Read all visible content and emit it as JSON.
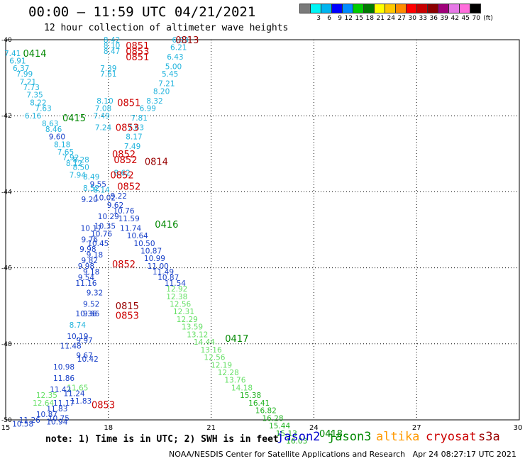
{
  "header": {
    "title": "00:00 – 11:59 UTC 04/21/2021",
    "subtitle": "12 hour collection of altimeter wave heights"
  },
  "legend": {
    "colors": [
      "#7a7a7a",
      "#00f5f5",
      "#00b4f0",
      "#0000ff",
      "#008cff",
      "#00cc00",
      "#007a00",
      "#ffff00",
      "#ffc800",
      "#ff8c00",
      "#ff0000",
      "#c80000",
      "#8c0000",
      "#a0007a",
      "#e678e6",
      "#ff6edc",
      "#000000"
    ],
    "labels": [
      "",
      "3",
      "6",
      "9",
      "12",
      "15",
      "18",
      "21",
      "24",
      "27",
      "30",
      "33",
      "36",
      "39",
      "42",
      "45",
      "70",
      "(ft)"
    ]
  },
  "footer": {
    "note": "note: 1) Time is in UTC; 2) SWH is in feet",
    "credit": "NOAA/NESDIS Center for Satellite Applications and Research   Apr 24 08:27:17 UTC 2021"
  },
  "satellites": [
    {
      "name": "jason2",
      "color": "#0000cc"
    },
    {
      "name": "jason3",
      "color": "#008800"
    },
    {
      "name": "altika",
      "color": "#ff9900"
    },
    {
      "name": "cryosat",
      "color": "#cc0000"
    },
    {
      "name": "s3a",
      "color": "#990000"
    }
  ],
  "chart_data": {
    "type": "scatter",
    "x_ticks": [
      "15",
      "18",
      "21",
      "24",
      "27",
      "30"
    ],
    "y_ticks": [
      "-40",
      "-42",
      "-44",
      "-46",
      "-48",
      "-50"
    ],
    "xlim": [
      15,
      30
    ],
    "ylim": [
      -50,
      -40
    ],
    "grid": true,
    "points": [
      {
        "x": 15.2,
        "y": -40.35,
        "t": "7.41",
        "c": "#22b4dd"
      },
      {
        "x": 15.35,
        "y": -40.55,
        "t": "6.91",
        "c": "#22b4dd"
      },
      {
        "x": 15.45,
        "y": -40.75,
        "t": "6.37",
        "c": "#22b4dd"
      },
      {
        "x": 15.55,
        "y": -40.9,
        "t": "7.99",
        "c": "#22b4dd"
      },
      {
        "x": 15.65,
        "y": -41.1,
        "t": "7.21",
        "c": "#22b4dd"
      },
      {
        "x": 15.75,
        "y": -41.25,
        "t": "7.73",
        "c": "#22b4dd"
      },
      {
        "x": 15.85,
        "y": -41.45,
        "t": "7.35",
        "c": "#22b4dd"
      },
      {
        "x": 15.95,
        "y": -41.65,
        "t": "8.22",
        "c": "#22b4dd"
      },
      {
        "x": 16.1,
        "y": -41.8,
        "t": "7.63",
        "c": "#22b4dd"
      },
      {
        "x": 15.8,
        "y": -42.0,
        "t": "6.16",
        "c": "#22b4dd"
      },
      {
        "x": 16.3,
        "y": -42.2,
        "t": "8.63",
        "c": "#22b4dd"
      },
      {
        "x": 16.4,
        "y": -42.35,
        "t": "8.46",
        "c": "#22b4dd"
      },
      {
        "x": 16.5,
        "y": -42.55,
        "t": "9.60",
        "c": "#1840c8"
      },
      {
        "x": 16.65,
        "y": -42.75,
        "t": "8.18",
        "c": "#22b4dd"
      },
      {
        "x": 16.75,
        "y": -42.95,
        "t": "7.65",
        "c": "#22b4dd"
      },
      {
        "x": 16.9,
        "y": -43.1,
        "t": "7.92",
        "c": "#22b4dd"
      },
      {
        "x": 17.0,
        "y": -43.25,
        "t": "8.12",
        "c": "#22b4dd"
      },
      {
        "x": 17.1,
        "y": -43.55,
        "t": "7.94",
        "c": "#22b4dd"
      },
      {
        "x": 17.45,
        "y": -44.2,
        "t": "9.20",
        "c": "#1840c8"
      },
      {
        "x": 17.5,
        "y": -43.9,
        "t": "8.52",
        "c": "#22b4dd"
      },
      {
        "x": 17.2,
        "y": -43.15,
        "t": "8.28",
        "c": "#22b4dd"
      },
      {
        "x": 17.2,
        "y": -43.35,
        "t": "8.50",
        "c": "#22b4dd"
      },
      {
        "x": 17.5,
        "y": -43.6,
        "t": "8.49",
        "c": "#22b4dd"
      },
      {
        "x": 17.7,
        "y": -43.8,
        "t": "9.55",
        "c": "#1840c8"
      },
      {
        "x": 17.8,
        "y": -43.95,
        "t": "8.14",
        "c": "#22b4dd"
      },
      {
        "x": 18.1,
        "y": -40.0,
        "t": "8.42",
        "c": "#22b4dd"
      },
      {
        "x": 18.1,
        "y": -40.15,
        "t": "8.10",
        "c": "#22b4dd"
      },
      {
        "x": 18.1,
        "y": -40.3,
        "t": "8.47",
        "c": "#22b4dd"
      },
      {
        "x": 18.0,
        "y": -40.75,
        "t": "7.39",
        "c": "#22b4dd"
      },
      {
        "x": 18.0,
        "y": -40.9,
        "t": "7.61",
        "c": "#22b4dd"
      },
      {
        "x": 17.9,
        "y": -41.6,
        "t": "8.10",
        "c": "#22b4dd"
      },
      {
        "x": 17.85,
        "y": -41.8,
        "t": "7.08",
        "c": "#22b4dd"
      },
      {
        "x": 17.8,
        "y": -42.0,
        "t": "7.49",
        "c": "#22b4dd"
      },
      {
        "x": 17.85,
        "y": -42.3,
        "t": "7.24",
        "c": "#22b4dd"
      },
      {
        "x": 20.1,
        "y": -40.0,
        "t": "6.83",
        "c": "#22b4dd"
      },
      {
        "x": 20.05,
        "y": -40.2,
        "t": "6.21",
        "c": "#22b4dd"
      },
      {
        "x": 19.95,
        "y": -40.45,
        "t": "6.43",
        "c": "#22b4dd"
      },
      {
        "x": 19.9,
        "y": -40.7,
        "t": "5.00",
        "c": "#22b4dd"
      },
      {
        "x": 19.8,
        "y": -40.9,
        "t": "5.45",
        "c": "#22b4dd"
      },
      {
        "x": 19.7,
        "y": -41.15,
        "t": "7.21",
        "c": "#22b4dd"
      },
      {
        "x": 19.55,
        "y": -41.35,
        "t": "8.20",
        "c": "#22b4dd"
      },
      {
        "x": 19.35,
        "y": -41.6,
        "t": "8.32",
        "c": "#22b4dd"
      },
      {
        "x": 19.15,
        "y": -41.8,
        "t": "6.99",
        "c": "#22b4dd"
      },
      {
        "x": 18.9,
        "y": -42.05,
        "t": "7.81",
        "c": "#22b4dd"
      },
      {
        "x": 18.8,
        "y": -42.3,
        "t": "7.63",
        "c": "#22b4dd"
      },
      {
        "x": 18.75,
        "y": -42.55,
        "t": "8.17",
        "c": "#22b4dd"
      },
      {
        "x": 18.7,
        "y": -42.8,
        "t": "7.49",
        "c": "#22b4dd"
      },
      {
        "x": 18.4,
        "y": -43.5,
        "t": "8.62",
        "c": "#22b4dd"
      },
      {
        "x": 18.3,
        "y": -44.1,
        "t": "9.22",
        "c": "#1840c8"
      },
      {
        "x": 17.9,
        "y": -44.15,
        "t": "10.02",
        "c": "#1840c8"
      },
      {
        "x": 18.2,
        "y": -44.35,
        "t": "9.62",
        "c": "#1840c8"
      },
      {
        "x": 18.45,
        "y": -44.5,
        "t": "10.76",
        "c": "#1840c8"
      },
      {
        "x": 18.0,
        "y": -44.65,
        "t": "10.29",
        "c": "#1840c8"
      },
      {
        "x": 18.6,
        "y": -44.7,
        "t": "11.59",
        "c": "#1840c8"
      },
      {
        "x": 17.9,
        "y": -44.9,
        "t": "10.35",
        "c": "#1840c8"
      },
      {
        "x": 18.65,
        "y": -44.95,
        "t": "11.74",
        "c": "#1840c8"
      },
      {
        "x": 17.5,
        "y": -44.95,
        "t": "10.17",
        "c": "#1840c8"
      },
      {
        "x": 17.8,
        "y": -45.1,
        "t": "10.76",
        "c": "#1840c8"
      },
      {
        "x": 18.85,
        "y": -45.15,
        "t": "10.64",
        "c": "#1840c8"
      },
      {
        "x": 17.45,
        "y": -45.25,
        "t": "9.76",
        "c": "#1840c8"
      },
      {
        "x": 17.7,
        "y": -45.35,
        "t": "10.45",
        "c": "#1840c8"
      },
      {
        "x": 19.05,
        "y": -45.35,
        "t": "10.50",
        "c": "#1840c8"
      },
      {
        "x": 17.4,
        "y": -45.5,
        "t": "9.98",
        "c": "#1840c8"
      },
      {
        "x": 17.6,
        "y": -45.65,
        "t": "9.18",
        "c": "#1840c8"
      },
      {
        "x": 19.25,
        "y": -45.55,
        "t": "10.87",
        "c": "#1840c8"
      },
      {
        "x": 17.45,
        "y": -45.8,
        "t": "9.82",
        "c": "#1840c8"
      },
      {
        "x": 19.35,
        "y": -45.75,
        "t": "10.99",
        "c": "#1840c8"
      },
      {
        "x": 17.35,
        "y": -45.95,
        "t": "9.98",
        "c": "#1840c8"
      },
      {
        "x": 19.45,
        "y": -45.95,
        "t": "11.00",
        "c": "#1840c8"
      },
      {
        "x": 17.5,
        "y": -46.1,
        "t": "9.18",
        "c": "#1840c8"
      },
      {
        "x": 19.6,
        "y": -46.1,
        "t": "11.49",
        "c": "#1840c8"
      },
      {
        "x": 17.35,
        "y": -46.25,
        "t": "9.54",
        "c": "#1840c8"
      },
      {
        "x": 19.75,
        "y": -46.25,
        "t": "10.87",
        "c": "#1840c8"
      },
      {
        "x": 17.35,
        "y": -46.4,
        "t": "11.16",
        "c": "#1840c8"
      },
      {
        "x": 19.95,
        "y": -46.4,
        "t": "11.54",
        "c": "#1840c8"
      },
      {
        "x": 17.6,
        "y": -46.65,
        "t": "9.32",
        "c": "#1840c8"
      },
      {
        "x": 17.5,
        "y": -46.95,
        "t": "9.52",
        "c": "#1840c8"
      },
      {
        "x": 17.35,
        "y": -47.2,
        "t": "10.36",
        "c": "#1840c8"
      },
      {
        "x": 17.5,
        "y": -47.2,
        "t": "9.66",
        "c": "#1840c8"
      },
      {
        "x": 17.1,
        "y": -47.5,
        "t": "8.74",
        "c": "#22b4dd"
      },
      {
        "x": 17.1,
        "y": -47.8,
        "t": "10.19",
        "c": "#1840c8"
      },
      {
        "x": 17.3,
        "y": -47.9,
        "t": "9.97",
        "c": "#1840c8"
      },
      {
        "x": 16.9,
        "y": -48.05,
        "t": "11.48",
        "c": "#1840c8"
      },
      {
        "x": 17.3,
        "y": -48.3,
        "t": "9.67",
        "c": "#1840c8"
      },
      {
        "x": 17.4,
        "y": -48.4,
        "t": "10.42",
        "c": "#1840c8"
      },
      {
        "x": 16.7,
        "y": -48.6,
        "t": "10.98",
        "c": "#1840c8"
      },
      {
        "x": 16.7,
        "y": -48.9,
        "t": "11.86",
        "c": "#1840c8"
      },
      {
        "x": 17.1,
        "y": -49.15,
        "t": "11.65",
        "c": "#66e066"
      },
      {
        "x": 16.6,
        "y": -49.2,
        "t": "11.42",
        "c": "#1840c8"
      },
      {
        "x": 17.0,
        "y": -49.3,
        "t": "11.24",
        "c": "#1840c8"
      },
      {
        "x": 16.2,
        "y": -49.35,
        "t": "12.35",
        "c": "#66e066"
      },
      {
        "x": 17.2,
        "y": -49.5,
        "t": "11.83",
        "c": "#1840c8"
      },
      {
        "x": 16.1,
        "y": -49.55,
        "t": "12.64",
        "c": "#66e066"
      },
      {
        "x": 16.7,
        "y": -49.55,
        "t": "11.17",
        "c": "#1840c8"
      },
      {
        "x": 16.5,
        "y": -49.7,
        "t": "11.83",
        "c": "#1840c8"
      },
      {
        "x": 16.2,
        "y": -49.85,
        "t": "10.87",
        "c": "#1840c8"
      },
      {
        "x": 15.7,
        "y": -50.0,
        "t": "11.26",
        "c": "#1840c8"
      },
      {
        "x": 16.55,
        "y": -49.95,
        "t": "10.75",
        "c": "#1840c8"
      },
      {
        "x": 15.5,
        "y": -50.1,
        "t": "10.58",
        "c": "#1840c8"
      },
      {
        "x": 16.5,
        "y": -50.05,
        "t": "10.94",
        "c": "#1840c8"
      },
      {
        "x": 20.0,
        "y": -46.55,
        "t": "12.92",
        "c": "#66e066"
      },
      {
        "x": 20.0,
        "y": -46.75,
        "t": "12.38",
        "c": "#66e066"
      },
      {
        "x": 20.1,
        "y": -46.95,
        "t": "12.56",
        "c": "#66e066"
      },
      {
        "x": 20.2,
        "y": -47.15,
        "t": "12.31",
        "c": "#66e066"
      },
      {
        "x": 20.3,
        "y": -47.35,
        "t": "12.29",
        "c": "#66e066"
      },
      {
        "x": 20.45,
        "y": -47.55,
        "t": "13.59",
        "c": "#66e066"
      },
      {
        "x": 20.6,
        "y": -47.75,
        "t": "13.12",
        "c": "#66e066"
      },
      {
        "x": 20.8,
        "y": -47.95,
        "t": "14.44",
        "c": "#66e066"
      },
      {
        "x": 21.0,
        "y": -48.15,
        "t": "13.16",
        "c": "#66e066"
      },
      {
        "x": 21.1,
        "y": -48.35,
        "t": "12.56",
        "c": "#66e066"
      },
      {
        "x": 21.3,
        "y": -48.55,
        "t": "12.19",
        "c": "#66e066"
      },
      {
        "x": 21.5,
        "y": -48.75,
        "t": "12.28",
        "c": "#66e066"
      },
      {
        "x": 21.7,
        "y": -48.95,
        "t": "13.76",
        "c": "#66e066"
      },
      {
        "x": 21.9,
        "y": -49.15,
        "t": "14.18",
        "c": "#66e066"
      },
      {
        "x": 22.15,
        "y": -49.35,
        "t": "15.38",
        "c": "#22b322"
      },
      {
        "x": 22.4,
        "y": -49.55,
        "t": "16.41",
        "c": "#22b322"
      },
      {
        "x": 22.6,
        "y": -49.75,
        "t": "16.82",
        "c": "#22b322"
      },
      {
        "x": 22.8,
        "y": -49.95,
        "t": "16.28",
        "c": "#22b322"
      },
      {
        "x": 23.0,
        "y": -50.15,
        "t": "15.44",
        "c": "#22b322"
      },
      {
        "x": 23.2,
        "y": -50.35,
        "t": "15.13",
        "c": "#22b322"
      },
      {
        "x": 23.5,
        "y": -50.55,
        "t": "16.03",
        "c": "#22b322"
      }
    ],
    "labels": [
      {
        "x": 20.3,
        "y": -40.0,
        "t": "0813",
        "c": "#990000"
      },
      {
        "x": 15.85,
        "y": -40.35,
        "t": "0414",
        "c": "#008800"
      },
      {
        "x": 18.85,
        "y": -40.15,
        "t": "0851",
        "c": "#cc0000"
      },
      {
        "x": 18.85,
        "y": -40.3,
        "t": "0853",
        "c": "#cc0000"
      },
      {
        "x": 18.85,
        "y": -40.45,
        "t": "0851",
        "c": "#cc0000"
      },
      {
        "x": 18.6,
        "y": -41.65,
        "t": "0851",
        "c": "#cc0000"
      },
      {
        "x": 17.0,
        "y": -42.05,
        "t": "0415",
        "c": "#008800"
      },
      {
        "x": 18.55,
        "y": -42.3,
        "t": "0853",
        "c": "#cc0000"
      },
      {
        "x": 18.45,
        "y": -43.0,
        "t": "0852",
        "c": "#cc0000"
      },
      {
        "x": 18.5,
        "y": -43.15,
        "t": "0852",
        "c": "#cc0000"
      },
      {
        "x": 19.4,
        "y": -43.2,
        "t": "0814",
        "c": "#990000"
      },
      {
        "x": 18.4,
        "y": -43.55,
        "t": "0852",
        "c": "#cc0000"
      },
      {
        "x": 18.6,
        "y": -43.85,
        "t": "0852",
        "c": "#cc0000"
      },
      {
        "x": 19.7,
        "y": -44.85,
        "t": "0416",
        "c": "#008800"
      },
      {
        "x": 18.45,
        "y": -45.9,
        "t": "0852",
        "c": "#cc0000"
      },
      {
        "x": 18.55,
        "y": -47.0,
        "t": "0815",
        "c": "#990000"
      },
      {
        "x": 18.55,
        "y": -47.25,
        "t": "0853",
        "c": "#cc0000"
      },
      {
        "x": 21.75,
        "y": -47.85,
        "t": "0417",
        "c": "#008800"
      },
      {
        "x": 17.85,
        "y": -49.6,
        "t": "0853",
        "c": "#cc0000"
      },
      {
        "x": 24.5,
        "y": -50.35,
        "t": "0418",
        "c": "#008800"
      }
    ]
  }
}
